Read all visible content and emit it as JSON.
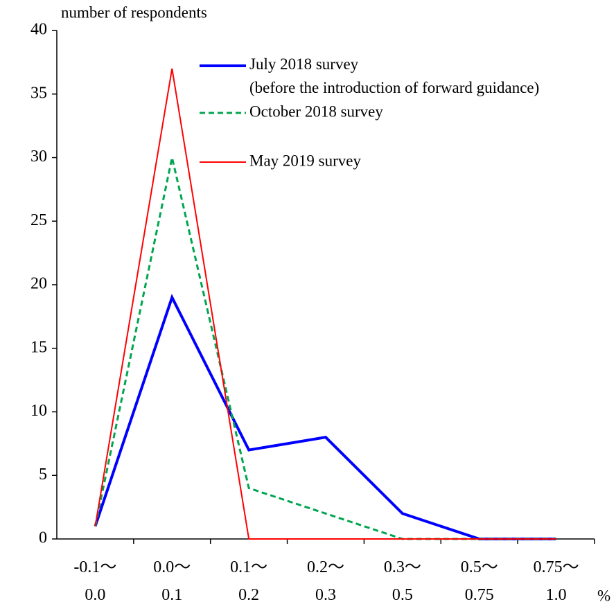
{
  "chart_data": {
    "type": "line",
    "y_label": "number of respondents",
    "x_unit": "%",
    "categories": [
      "-0.1〜\n0.0",
      "0.0〜\n0.1",
      "0.1〜\n0.2",
      "0.2〜\n0.3",
      "0.3〜\n0.5",
      "0.5〜\n0.75",
      "0.75〜\n1.0"
    ],
    "series": [
      {
        "name": "July 2018 survey\n(before the introduction of forward guidance)",
        "color": "#0000ff",
        "width": 4,
        "dashed": false,
        "values": [
          1,
          19,
          7,
          8,
          2,
          0,
          0
        ]
      },
      {
        "name": "October 2018 survey",
        "color": "#00a550",
        "width": 3,
        "dashed": true,
        "values": [
          1,
          30,
          4,
          2,
          0,
          0,
          0
        ]
      },
      {
        "name": "May 2019 survey",
        "color": "#ff0000",
        "width": 2,
        "dashed": false,
        "values": [
          1,
          37,
          0,
          0,
          0,
          0,
          0
        ]
      }
    ],
    "ylim": [
      0,
      40
    ],
    "yticks": [
      0,
      5,
      10,
      15,
      20,
      25,
      30,
      35,
      40
    ]
  }
}
